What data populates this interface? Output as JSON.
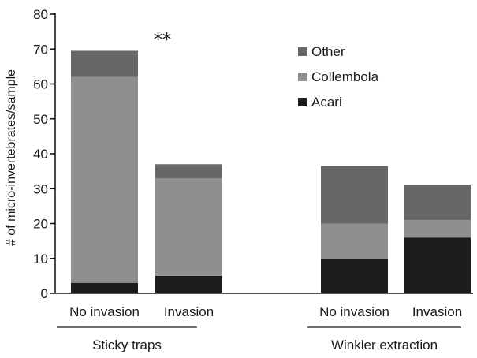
{
  "chart_data": {
    "type": "bar",
    "stacked": true,
    "title": "",
    "ylabel": "# of micro-invertebrates/sample",
    "xlabel": "",
    "ylim": [
      0,
      80
    ],
    "yticks": [
      0,
      10,
      20,
      30,
      40,
      50,
      60,
      70,
      80
    ],
    "categories": [
      "No invasion",
      "Invasion",
      "No invasion",
      "Invasion"
    ],
    "groups": [
      {
        "label": "Sticky traps",
        "categories": [
          0,
          1
        ]
      },
      {
        "label": "Winkler extraction",
        "categories": [
          2,
          3
        ]
      }
    ],
    "series": [
      {
        "name": "Acari",
        "color": "#1c1c1c",
        "values": [
          3,
          5,
          10,
          16
        ]
      },
      {
        "name": "Collembola",
        "color": "#8f8f8f",
        "values": [
          59,
          28,
          10,
          5
        ]
      },
      {
        "name": "Other",
        "color": "#676767",
        "values": [
          7.5,
          4,
          16.5,
          10
        ]
      }
    ],
    "legend_order": [
      "Other",
      "Collembola",
      "Acari"
    ],
    "legend_position": "top-right",
    "annotations": [
      {
        "text": "**",
        "category": 0
      }
    ],
    "grid": false
  }
}
